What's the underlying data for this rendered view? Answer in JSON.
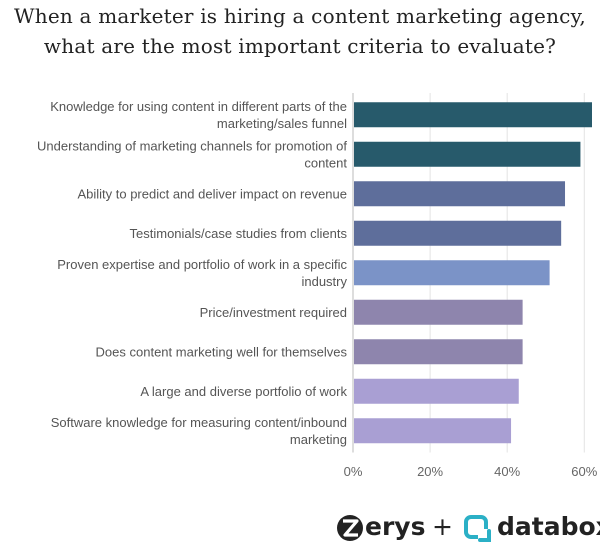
{
  "title_lines": [
    "When a marketer is hiring a content marketing agency,",
    "what are the most important criteria to evaluate?"
  ],
  "chart_data": {
    "type": "bar",
    "orientation": "horizontal",
    "title": "When a marketer is hiring a content marketing agency, what are the most important criteria to evaluate?",
    "categories": [
      [
        "Knowledge for using content in different parts of the",
        "marketing/sales funnel"
      ],
      [
        "Understanding of marketing channels for promotion of",
        "content"
      ],
      [
        "Ability to predict and deliver impact on revenue"
      ],
      [
        "Testimonials/case studies from clients"
      ],
      [
        "Proven expertise and portfolio of work in a specific",
        "industry"
      ],
      [
        "Price/investment required"
      ],
      [
        "Does content marketing well for themselves"
      ],
      [
        "A large and diverse portfolio of work"
      ],
      [
        "Software knowledge for measuring content/inbound",
        "marketing"
      ]
    ],
    "values": [
      62,
      59,
      55,
      54,
      51,
      44,
      44,
      43,
      41
    ],
    "colors": [
      "#275a6b",
      "#275a6b",
      "#5e6e9b",
      "#5e6e9b",
      "#7b93c7",
      "#8e85ad",
      "#8e85ad",
      "#a99fd3",
      "#a99fd3"
    ],
    "xlim": [
      0,
      62
    ],
    "xticks": [
      "0%",
      "20%",
      "40%",
      "60%"
    ],
    "xtick_values": [
      0,
      20,
      40,
      60
    ],
    "grid": true
  },
  "branding": {
    "brand1": "erys",
    "plus": "+",
    "brand2": "databox",
    "colors": {
      "dark": "#222222",
      "teal": "#2bb0c6"
    }
  }
}
